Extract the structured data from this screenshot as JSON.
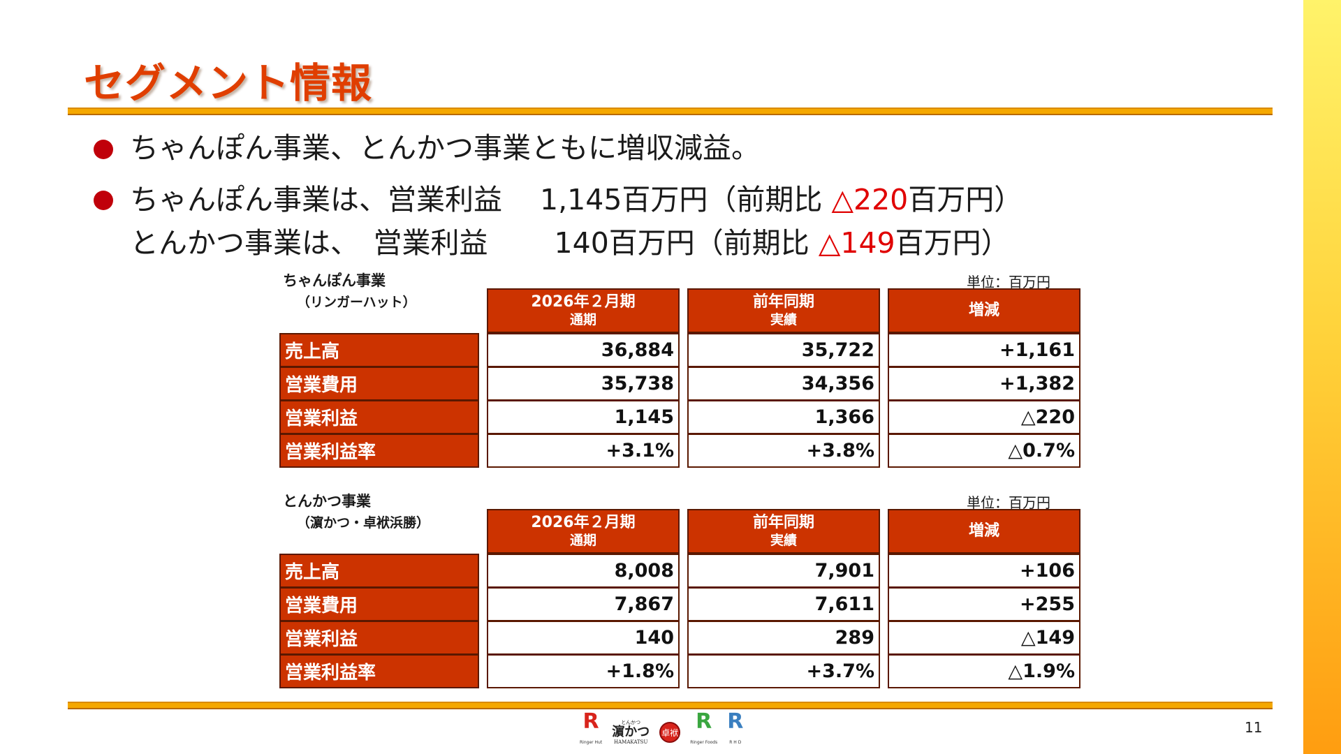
{
  "title": "セグメント情報",
  "bullets": {
    "b1": "ちゃんぽん事業、とんかつ事業ともに増収減益。",
    "b2_text": "ちゃんぽん事業は、営業利益　 1,145百万円（前期比 ",
    "b2_neg": "△220",
    "b2_tail": "百万円）",
    "b3_text": "とんかつ事業は、　営業利益 　　140百万円（前期比 ",
    "b3_neg": "△149",
    "b3_tail": "百万円）"
  },
  "colors": {
    "accent": "#e03e00",
    "header_bg": "#cc3300",
    "rule": "#f5a800",
    "negative": "#e00000"
  },
  "tables": [
    {
      "segment": "ちゃんぽん事業",
      "subtitle": "（リンガーハット）",
      "unit": "単位：百万円",
      "headers": [
        {
          "l1": "2026年２月期",
          "l2": "通期"
        },
        {
          "l1": "前年同期",
          "l2": "実績"
        },
        {
          "l1": "増減",
          "l2": ""
        }
      ],
      "rows": [
        {
          "label": "売上高",
          "cur": "36,884",
          "prev": "35,722",
          "diff": "+1,161"
        },
        {
          "label": "営業費用",
          "cur": "35,738",
          "prev": "34,356",
          "diff": "+1,382"
        },
        {
          "label": "営業利益",
          "cur": "1,145",
          "prev": "1,366",
          "diff": "△220"
        },
        {
          "label": "営業利益率",
          "cur": "+3.1%",
          "prev": "+3.8%",
          "diff": "△0.7%"
        }
      ]
    },
    {
      "segment": "とんかつ事業",
      "subtitle": "（濵かつ・卓袱浜勝）",
      "unit": "単位：百万円",
      "headers": [
        {
          "l1": "2026年２月期",
          "l2": "通期"
        },
        {
          "l1": "前年同期",
          "l2": "実績"
        },
        {
          "l1": "増減",
          "l2": ""
        }
      ],
      "rows": [
        {
          "label": "売上高",
          "cur": "8,008",
          "prev": "7,901",
          "diff": "+106"
        },
        {
          "label": "営業費用",
          "cur": "7,867",
          "prev": "7,611",
          "diff": "+255"
        },
        {
          "label": "営業利益",
          "cur": "140",
          "prev": "289",
          "diff": "△149"
        },
        {
          "label": "営業利益率",
          "cur": "+1.8%",
          "prev": "+3.7%",
          "diff": "△1.9%"
        }
      ]
    }
  ],
  "footer": {
    "page_number": "11",
    "logos": [
      {
        "icon": "ringerhut-logo",
        "text": "Ringer Hut"
      },
      {
        "icon": "hamakatsu-logo",
        "small": "とんかつ",
        "text": "濵かつ",
        "sub": "HAMAKATSU"
      },
      {
        "icon": "shippoku-logo",
        "text": "卓袱"
      },
      {
        "icon": "ringerfoods-logo",
        "text": "Ringer Foods"
      },
      {
        "icon": "rhd-logo",
        "text": "R H D"
      }
    ]
  }
}
